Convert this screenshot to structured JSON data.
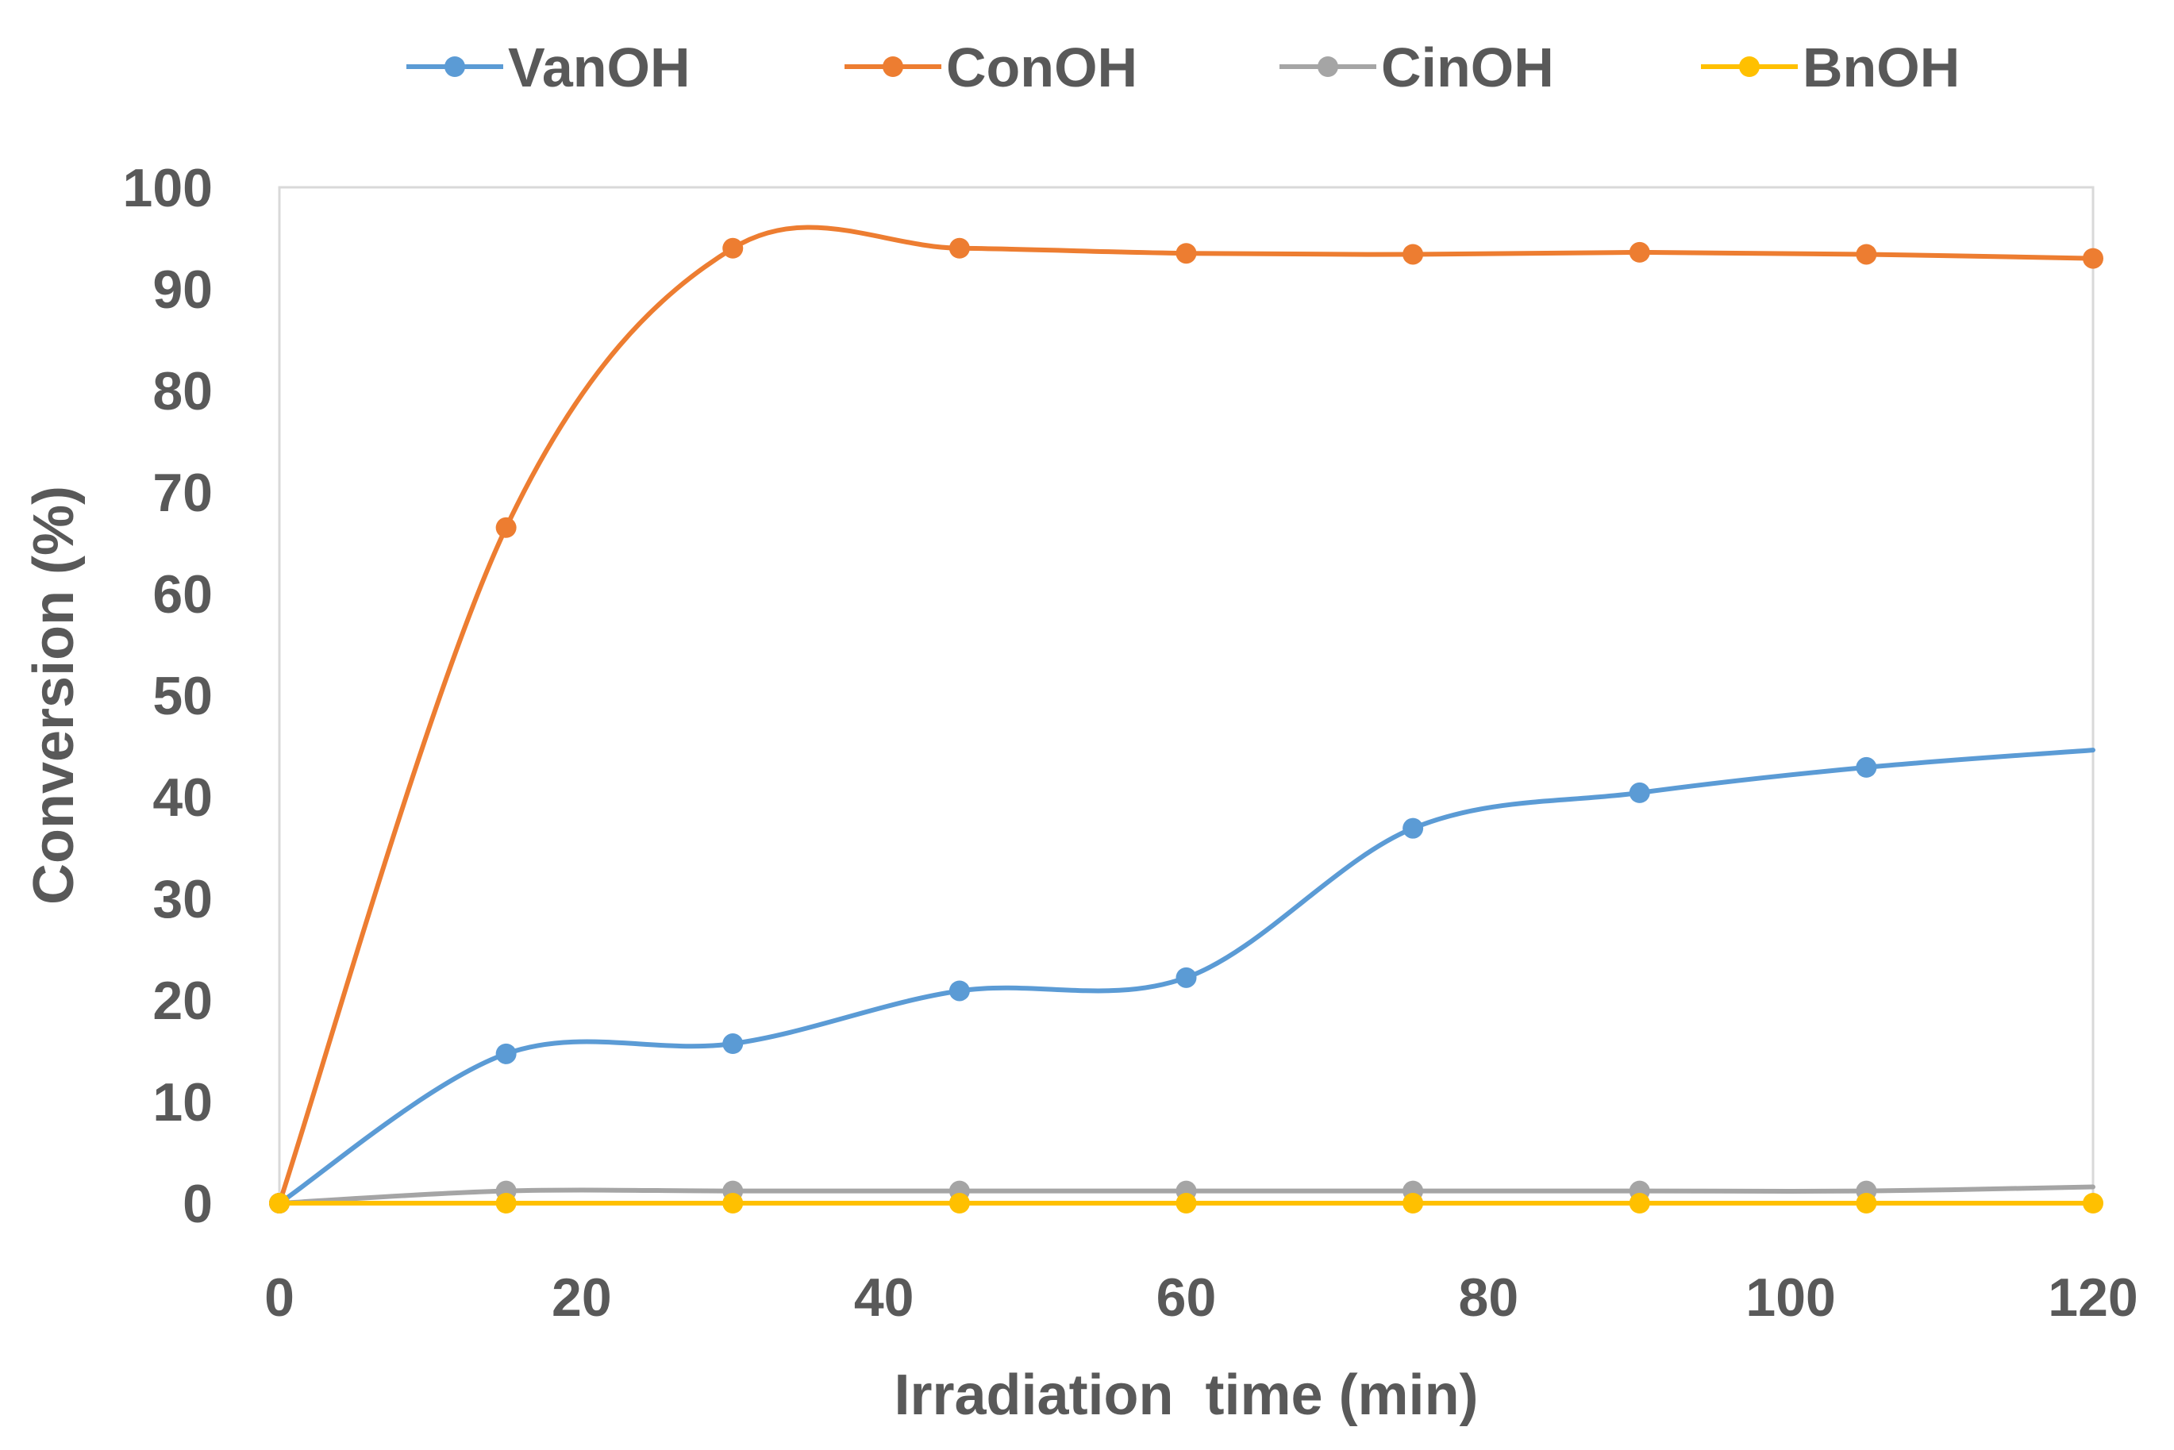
{
  "chart_data": {
    "type": "line",
    "title": "",
    "xlabel": "Irradiation  time (min)",
    "ylabel": "Conversion (%)",
    "xlim": [
      0,
      120
    ],
    "ylim": [
      0,
      100
    ],
    "xticks": [
      0,
      20,
      40,
      60,
      80,
      100,
      120
    ],
    "yticks": [
      0,
      10,
      20,
      30,
      40,
      50,
      60,
      70,
      80,
      90,
      100
    ],
    "x": [
      0,
      15,
      30,
      45,
      60,
      75,
      90,
      105,
      120
    ],
    "grid": false,
    "legend_position": "top",
    "series": [
      {
        "name": "VanOH",
        "color": "#5B9BD5",
        "values": [
          0,
          14.7,
          15.7,
          20.9,
          22.2,
          36.9,
          40.4,
          42.9,
          44.6
        ]
      },
      {
        "name": "ConOH",
        "color": "#ED7D31",
        "values": [
          0,
          66.5,
          94.0,
          94.0,
          93.5,
          93.4,
          93.6,
          93.4,
          93.0
        ]
      },
      {
        "name": "CinOH",
        "color": "#A5A5A5",
        "values": [
          0,
          1.2,
          1.2,
          1.2,
          1.2,
          1.2,
          1.2,
          1.2,
          1.6
        ]
      },
      {
        "name": "BnOH",
        "color": "#FFC000",
        "values": [
          0,
          0,
          0,
          0,
          0,
          0,
          0,
          0,
          0
        ]
      }
    ]
  }
}
